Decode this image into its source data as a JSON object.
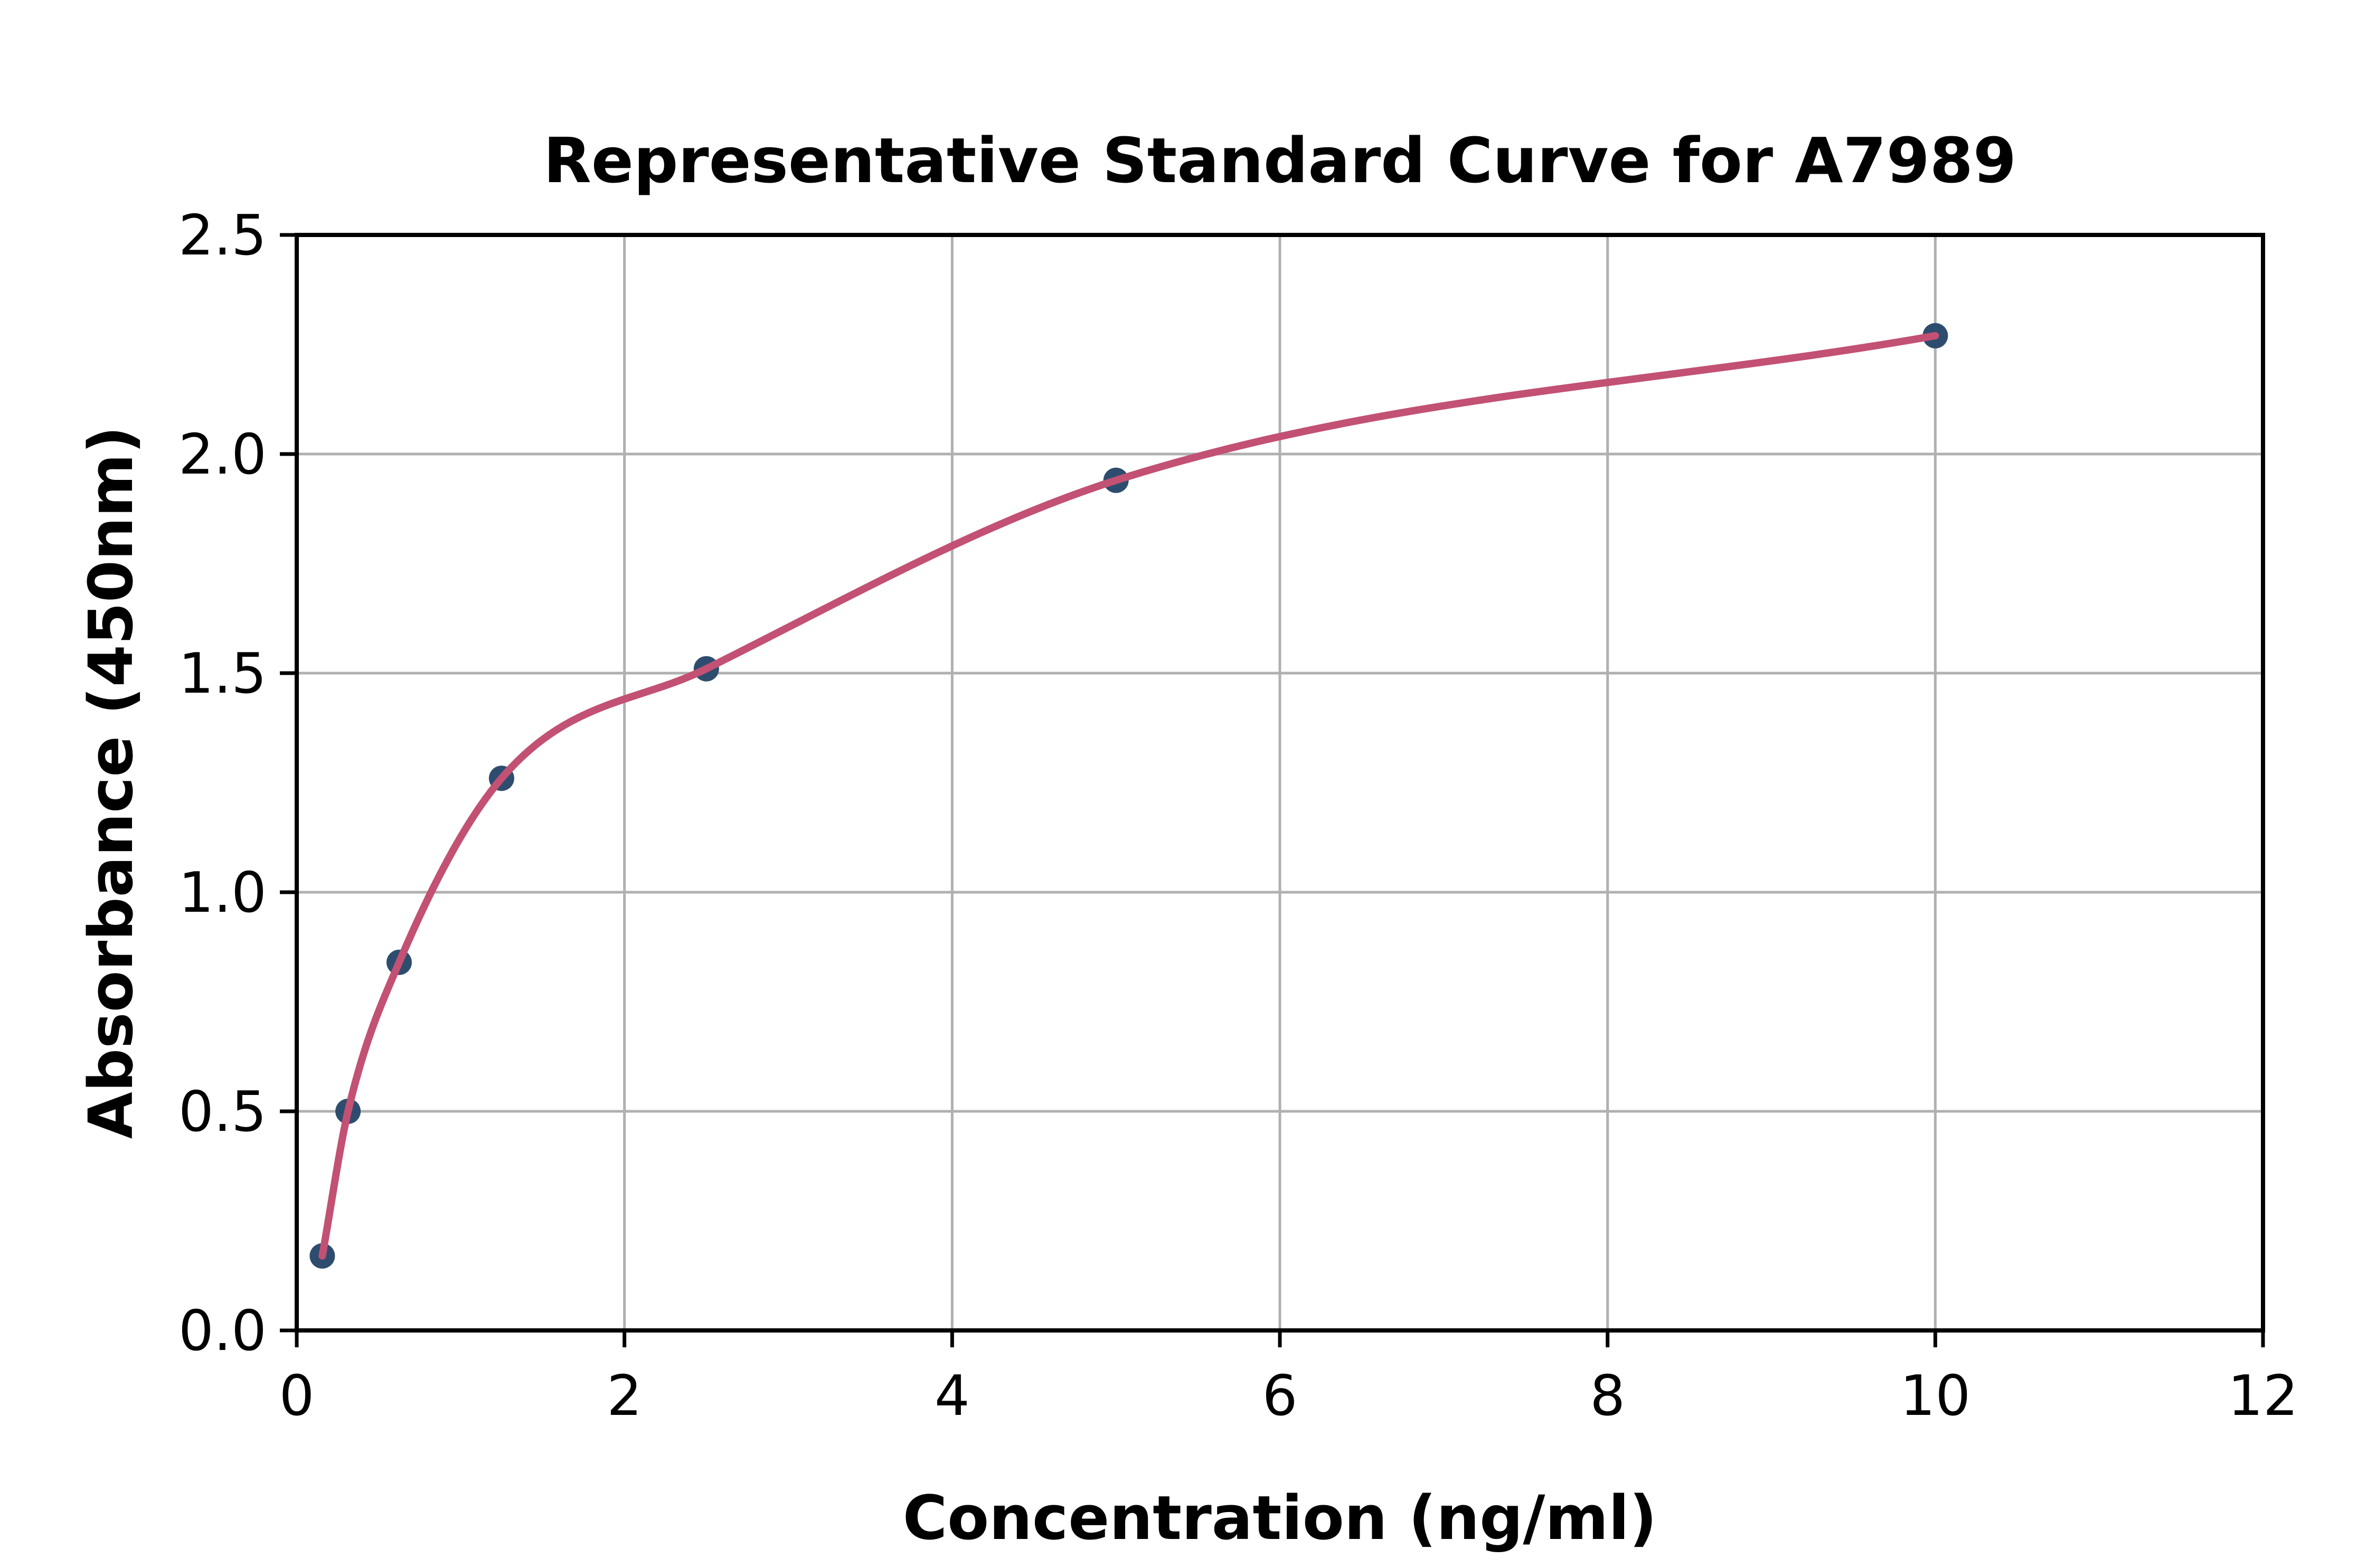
{
  "chart_data": {
    "type": "scatter",
    "title": "Representative Standard Curve for A7989",
    "xlabel": "Concentration (ng/ml)",
    "ylabel": "Absorbance (450nm)",
    "xlim": [
      0,
      12
    ],
    "ylim": [
      0.0,
      2.5
    ],
    "x_ticks": [
      0,
      2,
      4,
      6,
      8,
      10,
      12
    ],
    "x_tick_labels": [
      "0",
      "2",
      "4",
      "6",
      "8",
      "10",
      "12"
    ],
    "y_ticks": [
      0.0,
      0.5,
      1.0,
      1.5,
      2.0,
      2.5
    ],
    "y_tick_labels": [
      "0.0",
      "0.5",
      "1.0",
      "1.5",
      "2.0",
      "2.5"
    ],
    "grid": true,
    "legend": "none",
    "series": [
      {
        "name": "standards",
        "type": "scatter",
        "marker": "circle",
        "color": "#2e4d6e",
        "points": [
          {
            "x": 0.156,
            "y": 0.17
          },
          {
            "x": 0.313,
            "y": 0.5
          },
          {
            "x": 0.625,
            "y": 0.84
          },
          {
            "x": 1.25,
            "y": 1.26
          },
          {
            "x": 2.5,
            "y": 1.51
          },
          {
            "x": 5,
            "y": 1.94
          },
          {
            "x": 10,
            "y": 2.27
          }
        ]
      },
      {
        "name": "fitted-curve",
        "type": "line",
        "color": "#c25174",
        "x_start": 0.156,
        "x_end": 10
      }
    ],
    "colors": {
      "background": "#ffffff",
      "grid": "#b0b0b0",
      "spine": "#000000",
      "curve": "#c25174",
      "marker": "#2e4d6e"
    }
  }
}
